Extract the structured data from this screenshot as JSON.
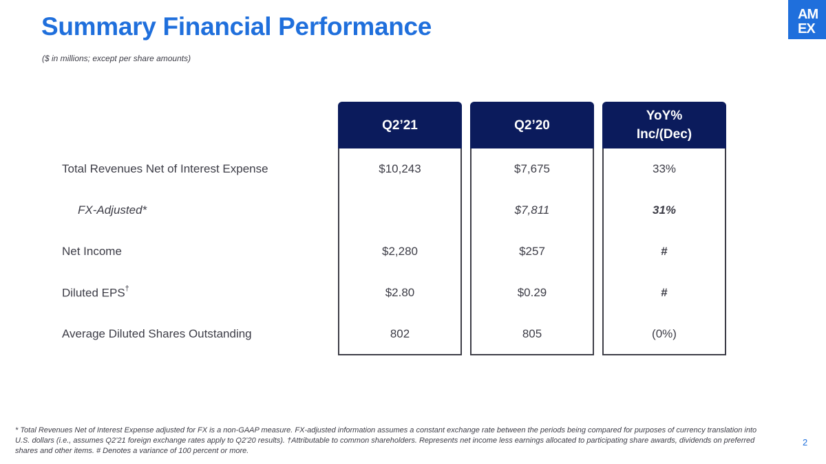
{
  "title": "Summary Financial Performance",
  "subtitle": "($ in millions; except per share amounts)",
  "logo": {
    "text": "AMEX",
    "color": "#1f6fdc"
  },
  "columns": [
    {
      "header": "Q2’21"
    },
    {
      "header": "Q2’20"
    },
    {
      "header_line1": "YoY%",
      "header_line2": "Inc/(Dec)"
    }
  ],
  "rows": [
    {
      "label": "Total Revenues Net of Interest Expense",
      "values": [
        "$10,243",
        "$7,675",
        "33%"
      ]
    },
    {
      "label": "FX-Adjusted*",
      "values": [
        "",
        "$7,811",
        "31%"
      ]
    },
    {
      "label": "Net Income",
      "values": [
        "$2,280",
        "$257",
        "#"
      ]
    },
    {
      "label": "Diluted EPS",
      "label_sup": "†",
      "values": [
        "$2.80",
        "$0.29",
        "#"
      ]
    },
    {
      "label": "Average Diluted Shares Outstanding",
      "values": [
        "802",
        "805",
        "(0%)"
      ]
    }
  ],
  "footnote": "* Total Revenues Net of Interest Expense adjusted for FX is a non-GAAP measure. FX-adjusted information assumes a constant exchange rate between the periods being compared for purposes of currency translation into U.S. dollars (i.e., assumes Q2’21 foreign exchange rates apply to Q2’20 results). †Attributable to common shareholders. Represents net income less earnings allocated to participating share awards, dividends on preferred shares and other items. # Denotes a variance of 100 percent or more.",
  "page_number": "2",
  "colors": {
    "title": "#1f6fdc",
    "header_bg": "#0b1b5c",
    "text": "#3c3c46"
  }
}
